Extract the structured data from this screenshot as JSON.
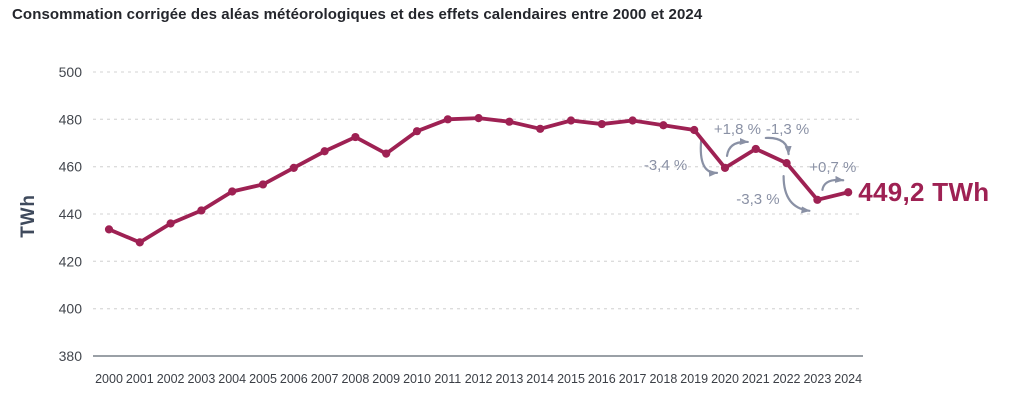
{
  "title": "Consommation corrigée des aléas météorologiques et des effets calendaires entre 2000 et 2024",
  "colors": {
    "line": "#9e2153",
    "annotation_gray": "#8a91a5",
    "title_text": "#24262c",
    "axis_title": "#3f4a5c",
    "y_tick_text": "#43474e",
    "x_tick_text": "#3b3f46",
    "grid": "#dcdcdc",
    "baseline": "#9aa0a6",
    "background": "#ffffff"
  },
  "chart_data": {
    "type": "line",
    "title": "Consommation corrigée des aléas météorologiques et des effets calendaires entre 2000 et 2024",
    "xlabel": "",
    "ylabel": "TWh",
    "ylim": [
      380,
      500
    ],
    "yticks": [
      380,
      400,
      420,
      440,
      460,
      480,
      500
    ],
    "grid": "horizontal-dashed",
    "legend_position": "none",
    "x": [
      2000,
      2001,
      2002,
      2003,
      2004,
      2005,
      2006,
      2007,
      2008,
      2009,
      2010,
      2011,
      2012,
      2013,
      2014,
      2015,
      2016,
      2017,
      2018,
      2019,
      2020,
      2021,
      2022,
      2023,
      2024
    ],
    "series": [
      {
        "name": "Consommation corrigée (TWh)",
        "color": "#9e2153",
        "values": [
          433.5,
          428,
          436,
          441.5,
          449.5,
          452.5,
          459.5,
          466.5,
          472.5,
          465.5,
          475,
          480,
          480.5,
          479,
          476,
          479.5,
          478,
          479.5,
          477.5,
          475.5,
          459.5,
          467.5,
          461.5,
          446,
          449.2
        ]
      }
    ],
    "annotations": [
      {
        "label": "-3,4 %",
        "from_year": 2019,
        "to_year": 2020,
        "direction": "down"
      },
      {
        "label": "+1,8 %",
        "from_year": 2020,
        "to_year": 2021,
        "direction": "up"
      },
      {
        "label": "-1,3 %",
        "from_year": 2021,
        "to_year": 2022,
        "direction": "down"
      },
      {
        "label": "-3,3 %",
        "from_year": 2022,
        "to_year": 2023,
        "direction": "down"
      },
      {
        "label": "+0,7 %",
        "from_year": 2023,
        "to_year": 2024,
        "direction": "up"
      }
    ],
    "end_label": {
      "text": "449,2 TWh",
      "year": 2024
    }
  }
}
